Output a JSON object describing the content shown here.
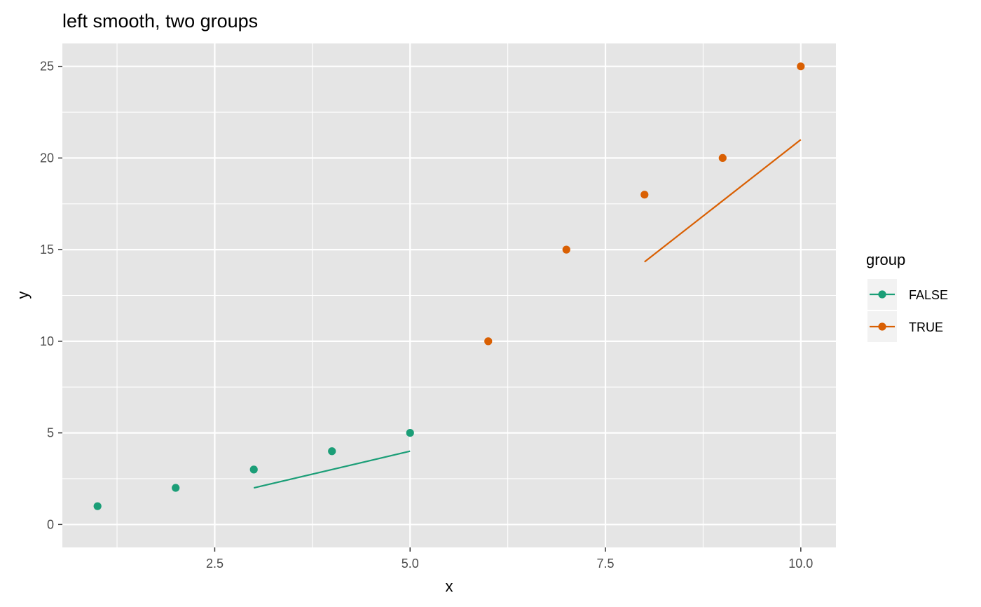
{
  "chart_data": {
    "type": "scatter",
    "title": "left smooth, two groups",
    "xlabel": "x",
    "ylabel": "y",
    "xlim": [
      0.55,
      10.45
    ],
    "ylim": [
      -1.25,
      26.25
    ],
    "x_ticks": [
      2.5,
      5.0,
      7.5,
      10.0
    ],
    "x_tick_labels": [
      "2.5",
      "5.0",
      "7.5",
      "10.0"
    ],
    "y_ticks": [
      0,
      5,
      10,
      15,
      20,
      25
    ],
    "y_tick_labels": [
      "0",
      "5",
      "10",
      "15",
      "20",
      "25"
    ],
    "grid": true,
    "legend": {
      "title": "group",
      "placement": "right"
    },
    "series": [
      {
        "name": "FALSE",
        "color": "#1b9e77",
        "points": [
          {
            "x": 1,
            "y": 1
          },
          {
            "x": 2,
            "y": 2
          },
          {
            "x": 3,
            "y": 3
          },
          {
            "x": 4,
            "y": 4
          },
          {
            "x": 5,
            "y": 5
          }
        ],
        "smooth": [
          {
            "x": 3,
            "y": 2
          },
          {
            "x": 5,
            "y": 4
          }
        ]
      },
      {
        "name": "TRUE",
        "color": "#d95f02",
        "points": [
          {
            "x": 6,
            "y": 10
          },
          {
            "x": 7,
            "y": 15
          },
          {
            "x": 8,
            "y": 18
          },
          {
            "x": 9,
            "y": 20
          },
          {
            "x": 10,
            "y": 25
          }
        ],
        "smooth": [
          {
            "x": 8,
            "y": 14.33
          },
          {
            "x": 10,
            "y": 21
          }
        ]
      }
    ]
  }
}
